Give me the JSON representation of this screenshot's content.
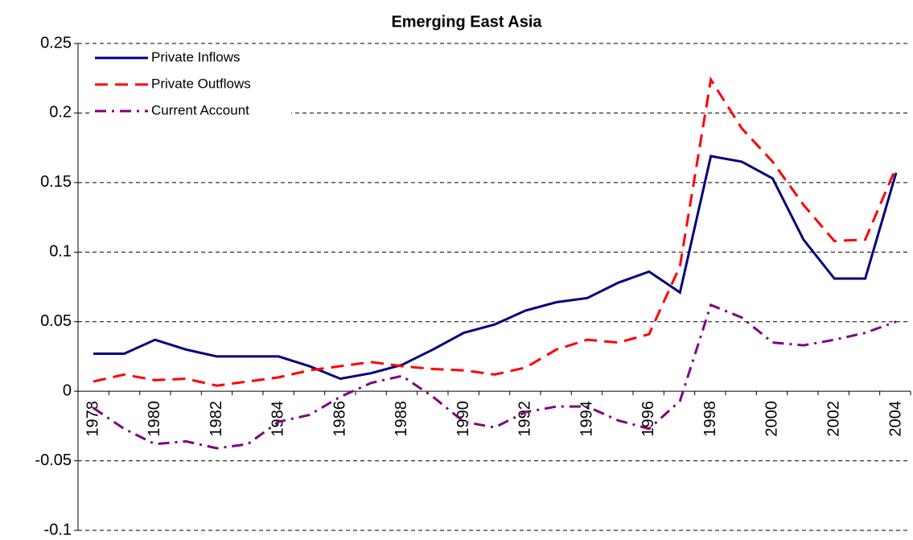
{
  "chart_data": {
    "type": "line",
    "title": "Emerging East Asia",
    "categories": [
      "1978",
      null,
      "1980",
      null,
      "1982",
      null,
      "1984",
      null,
      "1986",
      null,
      "1988",
      null,
      "1990",
      null,
      "1992",
      null,
      "1994",
      null,
      "1996",
      null,
      "1998",
      null,
      "2000",
      null,
      "2002",
      null,
      "2004"
    ],
    "series": [
      {
        "name": "Private Inflows",
        "color": "#000080",
        "style": "solid",
        "values": [
          0.027,
          0.027,
          0.037,
          0.03,
          0.025,
          0.025,
          0.025,
          0.018,
          0.009,
          0.013,
          0.019,
          0.03,
          0.042,
          0.048,
          0.058,
          0.064,
          0.067,
          0.078,
          0.086,
          0.071,
          0.169,
          0.165,
          0.153,
          0.109,
          0.081,
          0.081,
          0.157
        ]
      },
      {
        "name": "Private Outflows",
        "color": "#ff0000",
        "style": "dashed",
        "values": [
          0.007,
          0.012,
          0.008,
          0.009,
          0.004,
          0.007,
          0.01,
          0.015,
          0.018,
          0.021,
          0.018,
          0.016,
          0.015,
          0.012,
          0.017,
          0.03,
          0.037,
          0.035,
          0.041,
          0.09,
          0.224,
          0.189,
          0.165,
          0.134,
          0.108,
          0.109,
          0.161
        ]
      },
      {
        "name": "Current Account",
        "color": "#800080",
        "style": "dashdot",
        "values": [
          -0.012,
          -0.027,
          -0.038,
          -0.036,
          -0.041,
          -0.038,
          -0.022,
          -0.017,
          -0.004,
          0.006,
          0.011,
          -0.004,
          -0.022,
          -0.026,
          -0.015,
          -0.011,
          -0.011,
          -0.021,
          -0.027,
          -0.007,
          0.062,
          0.053,
          0.035,
          0.033,
          0.037,
          0.042,
          0.05
        ]
      }
    ],
    "ylim": [
      -0.1,
      0.25
    ],
    "yticks": [
      -0.1,
      -0.05,
      0,
      0.05,
      0.1,
      0.15,
      0.2,
      0.25
    ],
    "grid": true,
    "legend": "top-left"
  }
}
